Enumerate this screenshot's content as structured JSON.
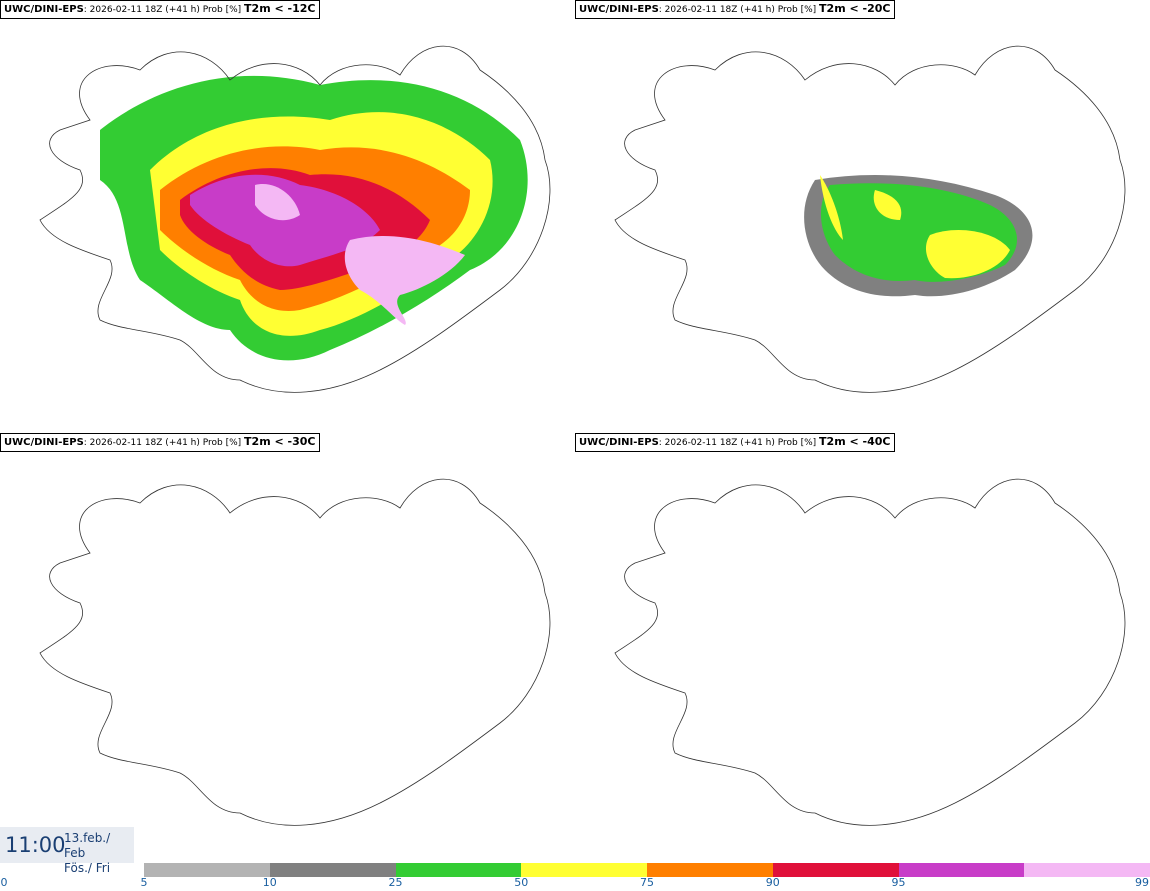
{
  "panels": [
    {
      "model": "UWC/DINI-EPS",
      "run": ": 2026-02-11 18Z (+41 h) Prob [%]",
      "var": "T2m < -12C"
    },
    {
      "model": "UWC/DINI-EPS",
      "run": ": 2026-02-11 18Z (+41 h) Prob [%]",
      "var": "T2m < -20C"
    },
    {
      "model": "UWC/DINI-EPS",
      "run": ": 2026-02-11 18Z (+41 h) Prob [%]",
      "var": "T2m < -30C"
    },
    {
      "model": "UWC/DINI-EPS",
      "run": ": 2026-02-11 18Z (+41 h) Prob [%]",
      "var": "T2m < -40C"
    }
  ],
  "valid": {
    "time": "11:00",
    "date_line1": "13.feb./ Feb",
    "date_line2": "Fös./ Fri"
  },
  "legend": {
    "ticks": [
      "0",
      "5",
      "10",
      "25",
      "50",
      "75",
      "90",
      "95",
      "99"
    ],
    "colors": [
      "#b3b3b3",
      "#808080",
      "#33cc33",
      "#ffff33",
      "#ff7f00",
      "#e0103a",
      "#c83cc8",
      "#f4b8f4"
    ]
  }
}
